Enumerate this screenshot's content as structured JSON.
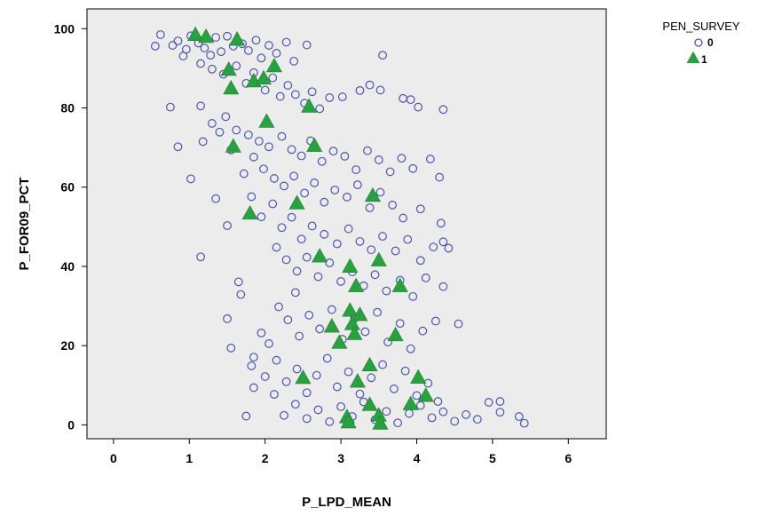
{
  "chart_data": {
    "type": "scatter",
    "xlabel": "P_LPD_MEAN",
    "ylabel": "P_FOR09_PCT",
    "xlim": [
      -0.35,
      6.5
    ],
    "ylim": [
      -3.5,
      105
    ],
    "xticks": [
      "0",
      "1",
      "2",
      "3",
      "4",
      "5",
      "6"
    ],
    "yticks": [
      "0",
      "20",
      "40",
      "60",
      "80",
      "100"
    ],
    "grid": false,
    "legend": {
      "title": "PEN_SURVEY",
      "placement": "top-right",
      "entries": [
        "0",
        "1"
      ]
    },
    "colors": {
      "series_0": "#4a55b0",
      "series_1": "#2aa140",
      "plot_background": "#ececec"
    },
    "series": [
      {
        "name": "0",
        "marker": "open-circle",
        "points": [
          [
            0.55,
            95.6
          ],
          [
            0.62,
            98.5
          ],
          [
            0.78,
            95.8
          ],
          [
            0.85,
            96.9
          ],
          [
            0.92,
            93.1
          ],
          [
            0.96,
            94.8
          ],
          [
            1.02,
            98.2
          ],
          [
            1.12,
            96.4
          ],
          [
            1.2,
            95.1
          ],
          [
            1.28,
            93.3
          ],
          [
            1.35,
            97.8
          ],
          [
            1.42,
            94.2
          ],
          [
            1.5,
            98.1
          ],
          [
            1.58,
            95.6
          ],
          [
            1.7,
            96.2
          ],
          [
            1.78,
            94.5
          ],
          [
            1.88,
            97.1
          ],
          [
            1.95,
            92.6
          ],
          [
            2.05,
            95.8
          ],
          [
            2.15,
            93.8
          ],
          [
            2.28,
            96.6
          ],
          [
            2.38,
            91.8
          ],
          [
            2.55,
            95.9
          ],
          [
            3.55,
            93.3
          ],
          [
            1.15,
            91.2
          ],
          [
            1.3,
            89.8
          ],
          [
            1.45,
            88.5
          ],
          [
            1.62,
            90.6
          ],
          [
            1.75,
            86.2
          ],
          [
            1.85,
            88.9
          ],
          [
            2.0,
            84.5
          ],
          [
            2.1,
            87.6
          ],
          [
            2.2,
            82.9
          ],
          [
            2.3,
            85.7
          ],
          [
            2.4,
            83.4
          ],
          [
            2.52,
            81.2
          ],
          [
            2.62,
            84.1
          ],
          [
            2.72,
            79.8
          ],
          [
            2.85,
            82.6
          ],
          [
            3.02,
            82.8
          ],
          [
            3.25,
            84.4
          ],
          [
            3.38,
            85.8
          ],
          [
            3.52,
            84.5
          ],
          [
            3.82,
            82.4
          ],
          [
            3.92,
            82.1
          ],
          [
            4.35,
            79.6
          ],
          [
            4.02,
            80.2
          ],
          [
            0.75,
            80.2
          ],
          [
            1.15,
            80.5
          ],
          [
            1.3,
            76.1
          ],
          [
            1.48,
            77.8
          ],
          [
            1.62,
            74.4
          ],
          [
            1.78,
            73.2
          ],
          [
            1.92,
            71.6
          ],
          [
            2.05,
            70.2
          ],
          [
            2.22,
            72.8
          ],
          [
            2.35,
            69.5
          ],
          [
            2.48,
            67.9
          ],
          [
            2.6,
            71.7
          ],
          [
            2.75,
            66.5
          ],
          [
            2.9,
            69.1
          ],
          [
            3.05,
            67.8
          ],
          [
            3.2,
            64.4
          ],
          [
            3.35,
            69.2
          ],
          [
            3.5,
            66.9
          ],
          [
            3.65,
            63.9
          ],
          [
            3.8,
            67.3
          ],
          [
            3.95,
            64.7
          ],
          [
            4.18,
            67.1
          ],
          [
            4.3,
            62.5
          ],
          [
            0.85,
            70.2
          ],
          [
            1.02,
            62.1
          ],
          [
            1.18,
            71.5
          ],
          [
            1.4,
            73.9
          ],
          [
            1.55,
            69.4
          ],
          [
            1.72,
            63.4
          ],
          [
            1.85,
            67.6
          ],
          [
            1.98,
            64.6
          ],
          [
            2.12,
            62.2
          ],
          [
            2.25,
            60.3
          ],
          [
            2.38,
            62.8
          ],
          [
            2.52,
            58.5
          ],
          [
            2.65,
            61.1
          ],
          [
            2.78,
            56.2
          ],
          [
            2.92,
            59.3
          ],
          [
            3.08,
            57.5
          ],
          [
            3.22,
            60.6
          ],
          [
            3.38,
            54.8
          ],
          [
            3.52,
            58.7
          ],
          [
            3.68,
            55.5
          ],
          [
            3.82,
            52.2
          ],
          [
            4.05,
            54.5
          ],
          [
            4.32,
            50.9
          ],
          [
            1.35,
            57.1
          ],
          [
            1.5,
            50.3
          ],
          [
            1.82,
            57.6
          ],
          [
            1.95,
            52.5
          ],
          [
            2.1,
            55.8
          ],
          [
            2.22,
            49.8
          ],
          [
            2.35,
            52.4
          ],
          [
            2.48,
            46.9
          ],
          [
            2.62,
            50.2
          ],
          [
            2.78,
            48.1
          ],
          [
            2.95,
            45.7
          ],
          [
            3.1,
            49.5
          ],
          [
            3.25,
            46.3
          ],
          [
            3.4,
            44.2
          ],
          [
            3.55,
            47.6
          ],
          [
            3.72,
            43.9
          ],
          [
            3.88,
            46.8
          ],
          [
            4.05,
            41.5
          ],
          [
            4.22,
            44.9
          ],
          [
            4.35,
            46.2
          ],
          [
            4.42,
            44.6
          ],
          [
            1.15,
            42.4
          ],
          [
            2.15,
            44.8
          ],
          [
            2.28,
            41.7
          ],
          [
            2.42,
            38.8
          ],
          [
            2.55,
            42.3
          ],
          [
            2.7,
            37.4
          ],
          [
            2.85,
            40.9
          ],
          [
            3.0,
            36.2
          ],
          [
            3.15,
            38.6
          ],
          [
            3.3,
            35.1
          ],
          [
            3.45,
            37.9
          ],
          [
            3.6,
            33.8
          ],
          [
            3.78,
            36.5
          ],
          [
            3.95,
            32.4
          ],
          [
            4.12,
            37.1
          ],
          [
            4.35,
            34.9
          ],
          [
            1.65,
            36.1
          ],
          [
            1.68,
            32.9
          ],
          [
            2.4,
            33.4
          ],
          [
            1.5,
            26.8
          ],
          [
            1.85,
            17.1
          ],
          [
            1.95,
            23.2
          ],
          [
            2.05,
            20.5
          ],
          [
            2.18,
            29.8
          ],
          [
            2.3,
            26.5
          ],
          [
            2.45,
            22.4
          ],
          [
            2.58,
            27.7
          ],
          [
            2.72,
            24.2
          ],
          [
            2.88,
            29.1
          ],
          [
            3.02,
            21.6
          ],
          [
            3.18,
            26.9
          ],
          [
            3.32,
            23.5
          ],
          [
            3.48,
            28.4
          ],
          [
            3.62,
            20.9
          ],
          [
            3.78,
            25.6
          ],
          [
            3.92,
            19.2
          ],
          [
            4.08,
            23.7
          ],
          [
            4.25,
            26.2
          ],
          [
            4.55,
            25.5
          ],
          [
            1.55,
            19.4
          ],
          [
            1.82,
            14.9
          ],
          [
            1.85,
            9.4
          ],
          [
            2.0,
            12.2
          ],
          [
            2.15,
            16.3
          ],
          [
            2.28,
            10.9
          ],
          [
            2.42,
            14.1
          ],
          [
            2.55,
            8.1
          ],
          [
            2.68,
            12.5
          ],
          [
            2.82,
            16.8
          ],
          [
            2.95,
            9.6
          ],
          [
            3.1,
            13.4
          ],
          [
            3.25,
            7.8
          ],
          [
            3.4,
            11.9
          ],
          [
            3.55,
            15.2
          ],
          [
            3.7,
            9.1
          ],
          [
            3.85,
            13.6
          ],
          [
            4.0,
            7.4
          ],
          [
            4.15,
            10.5
          ],
          [
            4.28,
            5.9
          ],
          [
            2.12,
            7.7
          ],
          [
            1.75,
            2.2
          ],
          [
            2.25,
            2.4
          ],
          [
            2.4,
            5.2
          ],
          [
            2.55,
            1.6
          ],
          [
            2.7,
            3.8
          ],
          [
            2.85,
            0.8
          ],
          [
            3.0,
            4.6
          ],
          [
            3.15,
            2.1
          ],
          [
            3.3,
            5.8
          ],
          [
            3.45,
            1.3
          ],
          [
            3.6,
            3.4
          ],
          [
            3.75,
            0.5
          ],
          [
            3.9,
            2.9
          ],
          [
            4.05,
            4.9
          ],
          [
            4.2,
            1.8
          ],
          [
            4.35,
            3.3
          ],
          [
            4.5,
            0.9
          ],
          [
            4.65,
            2.6
          ],
          [
            4.8,
            1.4
          ],
          [
            4.95,
            5.7
          ],
          [
            5.1,
            5.9
          ],
          [
            5.1,
            3.2
          ],
          [
            5.35,
            2.1
          ],
          [
            5.42,
            0.4
          ]
        ]
      },
      {
        "name": "1",
        "marker": "filled-triangle",
        "points": [
          [
            1.08,
            98.3
          ],
          [
            1.22,
            97.8
          ],
          [
            1.63,
            97.1
          ],
          [
            1.52,
            89.5
          ],
          [
            2.12,
            90.4
          ],
          [
            1.85,
            86.6
          ],
          [
            1.98,
            87.3
          ],
          [
            1.55,
            84.8
          ],
          [
            2.58,
            80.2
          ],
          [
            2.02,
            76.4
          ],
          [
            2.65,
            70.3
          ],
          [
            1.58,
            70.1
          ],
          [
            3.42,
            57.7
          ],
          [
            2.42,
            55.8
          ],
          [
            1.8,
            53.2
          ],
          [
            2.72,
            42.4
          ],
          [
            3.12,
            39.8
          ],
          [
            3.5,
            41.4
          ],
          [
            3.2,
            34.9
          ],
          [
            3.78,
            34.9
          ],
          [
            3.12,
            28.7
          ],
          [
            3.25,
            27.6
          ],
          [
            3.15,
            25.3
          ],
          [
            2.88,
            24.7
          ],
          [
            3.18,
            22.8
          ],
          [
            3.72,
            22.5
          ],
          [
            2.98,
            20.6
          ],
          [
            3.38,
            14.9
          ],
          [
            2.5,
            11.7
          ],
          [
            3.22,
            10.8
          ],
          [
            4.02,
            11.8
          ],
          [
            4.12,
            7.2
          ],
          [
            3.92,
            5.1
          ],
          [
            3.38,
            4.9
          ],
          [
            3.5,
            2.2
          ],
          [
            3.08,
            1.8
          ],
          [
            3.1,
            0.5
          ],
          [
            3.52,
            0.2
          ]
        ]
      }
    ]
  }
}
